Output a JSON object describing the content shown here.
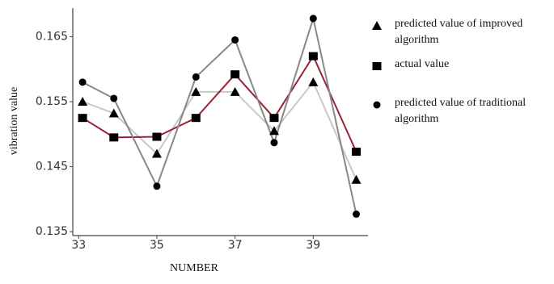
{
  "chart_data": {
    "type": "line",
    "xlabel": "NUMBER",
    "ylabel": "vibration value",
    "x": [
      33.1,
      33.9,
      35,
      36,
      37,
      38,
      39,
      40.1
    ],
    "series": [
      {
        "name": "predicted value of improved algorithm",
        "color": "#c8c8c8",
        "marker": "triangle",
        "values": [
          0.155,
          0.1532,
          0.147,
          0.1565,
          0.1565,
          0.1505,
          0.158,
          0.143
        ]
      },
      {
        "name": "actual value",
        "color": "#9b2335",
        "marker": "square",
        "values": [
          0.1525,
          0.1495,
          0.1496,
          0.1525,
          0.1592,
          0.1525,
          0.162,
          0.1473
        ]
      },
      {
        "name": "predicted value of traditional algorithm",
        "color": "#888888",
        "marker": "circle",
        "values": [
          0.158,
          0.1555,
          0.142,
          0.1588,
          0.1645,
          0.1487,
          0.1678,
          0.1377
        ]
      }
    ],
    "xlim": [
      32.85,
      40.4
    ],
    "ylim": [
      0.1344,
      0.1694
    ],
    "xticks": [
      33,
      35,
      37,
      39
    ],
    "yticks": [
      0.135,
      0.145,
      0.155,
      0.165
    ],
    "grid": false
  }
}
